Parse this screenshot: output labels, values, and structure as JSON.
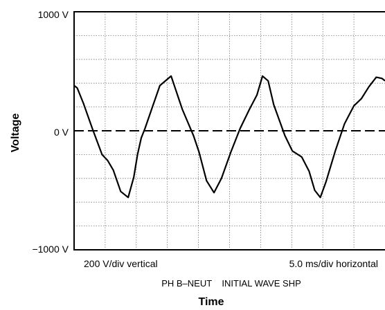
{
  "chart_data": {
    "type": "line",
    "title": "",
    "xlabel": "Time",
    "ylabel": "Voltage",
    "y_tick_labels": [
      "1000 V",
      "0 V",
      "−1000 V"
    ],
    "ylim": [
      -1000,
      1000
    ],
    "y_units": "V",
    "x_units": "ms",
    "xlim": [
      0,
      50
    ],
    "grid": true,
    "grid_style": "dotted",
    "zero_line_style": "dashed",
    "scale_notes": {
      "vertical": "200 V/div vertical",
      "horizontal": "5.0 ms/div horizontal"
    },
    "annotation": "PH B–NEUT    INITIAL WAVE SHP",
    "series": [
      {
        "color": "#000000",
        "x": [
          0,
          0.5,
          1.5,
          3,
          4.5,
          5.4,
          6.3,
          7.5,
          8.7,
          9.6,
          10.2,
          10.8,
          11.4,
          12.6,
          13.8,
          15.6,
          17.4,
          19.2,
          20.1,
          20.7,
          21.3,
          22.5,
          23.7,
          25.2,
          26.7,
          28.2,
          29.4,
          30.3,
          31.2,
          32.1,
          33.9,
          35.1,
          36.6,
          37.8,
          38.7,
          39.6,
          40.5,
          42,
          43.5,
          45,
          46.2,
          47.4,
          48.6,
          49.5,
          50
        ],
        "y": [
          380,
          360,
          230,
          10,
          -200,
          -250,
          -330,
          -510,
          -560,
          -390,
          -200,
          -60,
          20,
          200,
          380,
          460,
          180,
          -40,
          -180,
          -300,
          -420,
          -520,
          -400,
          -180,
          20,
          180,
          300,
          460,
          420,
          220,
          -40,
          -170,
          -220,
          -340,
          -500,
          -560,
          -430,
          -170,
          60,
          210,
          270,
          370,
          450,
          440,
          420
        ]
      }
    ]
  }
}
